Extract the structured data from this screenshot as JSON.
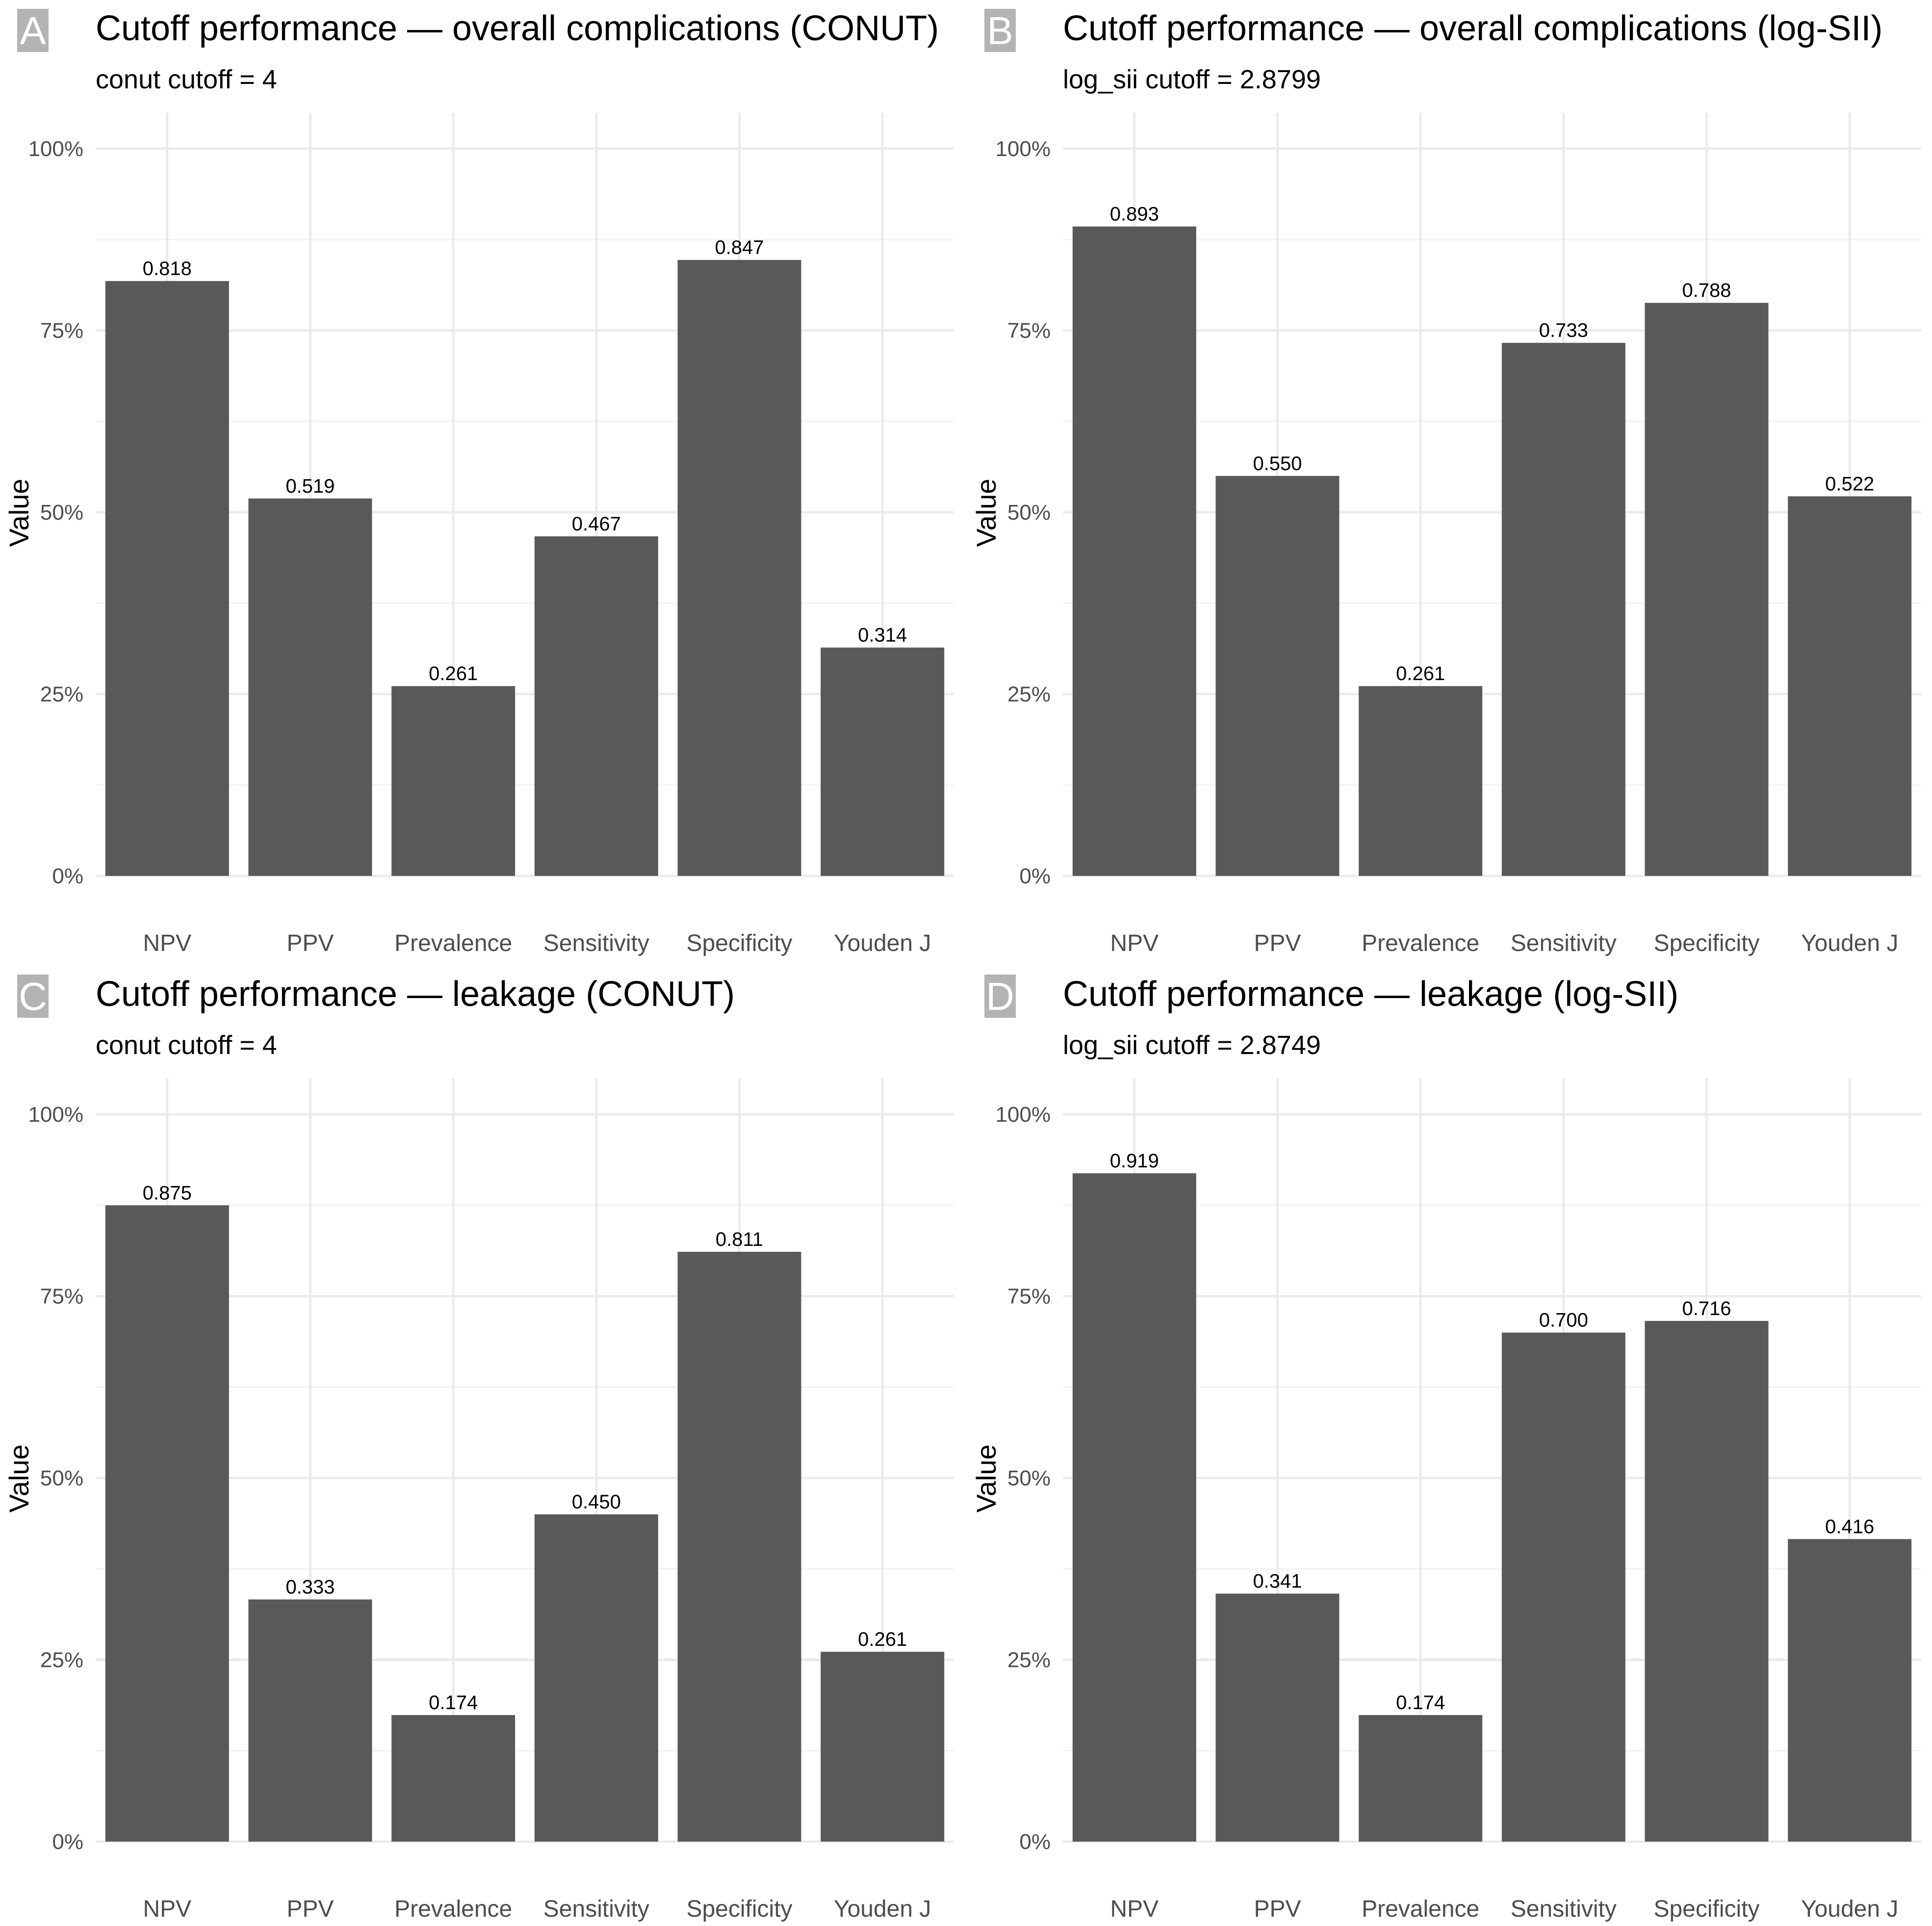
{
  "chart_data": [
    {
      "type": "bar",
      "panel_label": "A",
      "title": "Cutoff performance — overall complications (CONUT)",
      "subtitle": "conut cutoff = 4",
      "ylabel": "Value",
      "xlabel": "",
      "ylim": [
        0,
        1
      ],
      "yticks": [
        "0%",
        "25%",
        "50%",
        "75%",
        "100%"
      ],
      "categories": [
        "NPV",
        "PPV",
        "Prevalence",
        "Sensitivity",
        "Specificity",
        "Youden J"
      ],
      "values": [
        0.818,
        0.519,
        0.261,
        0.467,
        0.847,
        0.314
      ],
      "labels": [
        "0.818",
        "0.519",
        "0.261",
        "0.467",
        "0.847",
        "0.314"
      ]
    },
    {
      "type": "bar",
      "panel_label": "B",
      "title": "Cutoff performance — overall complications (log-SII)",
      "subtitle": "log_sii cutoff = 2.8799",
      "ylabel": "Value",
      "xlabel": "",
      "ylim": [
        0,
        1
      ],
      "yticks": [
        "0%",
        "25%",
        "50%",
        "75%",
        "100%"
      ],
      "categories": [
        "NPV",
        "PPV",
        "Prevalence",
        "Sensitivity",
        "Specificity",
        "Youden J"
      ],
      "values": [
        0.893,
        0.55,
        0.261,
        0.733,
        0.788,
        0.522
      ],
      "labels": [
        "0.893",
        "0.550",
        "0.261",
        "0.733",
        "0.788",
        "0.522"
      ]
    },
    {
      "type": "bar",
      "panel_label": "C",
      "title": "Cutoff performance — leakage (CONUT)",
      "subtitle": "conut cutoff = 4",
      "ylabel": "Value",
      "xlabel": "",
      "ylim": [
        0,
        1
      ],
      "yticks": [
        "0%",
        "25%",
        "50%",
        "75%",
        "100%"
      ],
      "categories": [
        "NPV",
        "PPV",
        "Prevalence",
        "Sensitivity",
        "Specificity",
        "Youden J"
      ],
      "values": [
        0.875,
        0.333,
        0.174,
        0.45,
        0.811,
        0.261
      ],
      "labels": [
        "0.875",
        "0.333",
        "0.174",
        "0.450",
        "0.811",
        "0.261"
      ]
    },
    {
      "type": "bar",
      "panel_label": "D",
      "title": "Cutoff performance — leakage (log-SII)",
      "subtitle": "log_sii cutoff = 2.8749",
      "ylabel": "Value",
      "xlabel": "",
      "ylim": [
        0,
        1
      ],
      "yticks": [
        "0%",
        "25%",
        "50%",
        "75%",
        "100%"
      ],
      "categories": [
        "NPV",
        "PPV",
        "Prevalence",
        "Sensitivity",
        "Specificity",
        "Youden J"
      ],
      "values": [
        0.919,
        0.341,
        0.174,
        0.7,
        0.716,
        0.416
      ],
      "labels": [
        "0.919",
        "0.341",
        "0.174",
        "0.700",
        "0.716",
        "0.416"
      ]
    }
  ],
  "colors": {
    "bar": "#595959",
    "panel_label_bg": "#b3b3b3",
    "grid_major": "#ebebeb",
    "grid_minor": "#f2f2f2"
  }
}
